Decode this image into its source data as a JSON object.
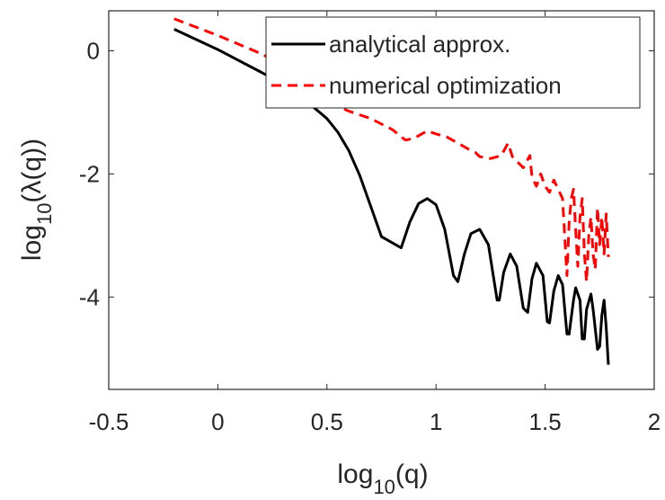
{
  "chart_data": {
    "type": "line",
    "xlabel": {
      "base": "log",
      "sub": "10",
      "rest": "(q)"
    },
    "ylabel": {
      "base": "log",
      "sub": "10",
      "rest": "(λ(q))"
    },
    "xlim": [
      -0.5,
      2
    ],
    "ylim": [
      -5.5,
      0.65
    ],
    "xticks": [
      -0.5,
      0,
      0.5,
      1,
      1.5,
      2
    ],
    "yticks": [
      -4,
      -2,
      0
    ],
    "legend_position": "top-right",
    "series": [
      {
        "name": "analytical approx.",
        "color": "#000000",
        "style": "solid",
        "points": [
          [
            -0.2,
            0.35
          ],
          [
            0.0,
            0.02
          ],
          [
            0.2,
            -0.35
          ],
          [
            0.3,
            -0.55
          ],
          [
            0.4,
            -0.8
          ],
          [
            0.5,
            -1.1
          ],
          [
            0.55,
            -1.32
          ],
          [
            0.6,
            -1.62
          ],
          [
            0.65,
            -2.02
          ],
          [
            0.7,
            -2.52
          ],
          [
            0.75,
            -3.02
          ],
          [
            0.84,
            -3.2
          ],
          [
            0.88,
            -2.78
          ],
          [
            0.92,
            -2.48
          ],
          [
            0.96,
            -2.4
          ],
          [
            1.0,
            -2.5
          ],
          [
            1.04,
            -2.9
          ],
          [
            1.08,
            -3.65
          ],
          [
            1.1,
            -3.75
          ],
          [
            1.13,
            -3.3
          ],
          [
            1.16,
            -2.97
          ],
          [
            1.2,
            -2.9
          ],
          [
            1.24,
            -3.15
          ],
          [
            1.28,
            -4.05
          ],
          [
            1.29,
            -4.05
          ],
          [
            1.31,
            -3.6
          ],
          [
            1.34,
            -3.3
          ],
          [
            1.37,
            -3.5
          ],
          [
            1.4,
            -4.18
          ],
          [
            1.42,
            -4.25
          ],
          [
            1.44,
            -3.7
          ],
          [
            1.46,
            -3.45
          ],
          [
            1.49,
            -3.65
          ],
          [
            1.51,
            -4.4
          ],
          [
            1.52,
            -4.42
          ],
          [
            1.54,
            -3.9
          ],
          [
            1.56,
            -3.65
          ],
          [
            1.58,
            -3.8
          ],
          [
            1.6,
            -4.6
          ],
          [
            1.61,
            -4.6
          ],
          [
            1.63,
            -4.05
          ],
          [
            1.64,
            -3.85
          ],
          [
            1.66,
            -4.05
          ],
          [
            1.67,
            -4.68
          ],
          [
            1.68,
            -4.68
          ],
          [
            1.69,
            -4.2
          ],
          [
            1.71,
            -3.95
          ],
          [
            1.72,
            -4.2
          ],
          [
            1.74,
            -4.85
          ],
          [
            1.75,
            -4.8
          ],
          [
            1.76,
            -4.3
          ],
          [
            1.77,
            -4.05
          ],
          [
            1.78,
            -4.5
          ],
          [
            1.79,
            -5.1
          ]
        ]
      },
      {
        "name": "numerical optimization",
        "color": "#ff0000",
        "style": "dashed",
        "points": [
          [
            -0.2,
            0.52
          ],
          [
            0.0,
            0.25
          ],
          [
            0.2,
            -0.05
          ],
          [
            0.3,
            -0.25
          ],
          [
            0.4,
            -0.55
          ],
          [
            0.5,
            -0.82
          ],
          [
            0.6,
            -0.98
          ],
          [
            0.7,
            -1.1
          ],
          [
            0.8,
            -1.28
          ],
          [
            0.86,
            -1.45
          ],
          [
            0.9,
            -1.42
          ],
          [
            0.96,
            -1.3
          ],
          [
            1.0,
            -1.35
          ],
          [
            1.05,
            -1.4
          ],
          [
            1.1,
            -1.5
          ],
          [
            1.15,
            -1.6
          ],
          [
            1.18,
            -1.65
          ],
          [
            1.2,
            -1.72
          ],
          [
            1.25,
            -1.75
          ],
          [
            1.3,
            -1.7
          ],
          [
            1.33,
            -1.5
          ],
          [
            1.35,
            -1.72
          ],
          [
            1.4,
            -1.9
          ],
          [
            1.43,
            -1.7
          ],
          [
            1.44,
            -2.05
          ],
          [
            1.46,
            -2.2
          ],
          [
            1.48,
            -2.0
          ],
          [
            1.5,
            -2.2
          ],
          [
            1.52,
            -2.3
          ],
          [
            1.54,
            -2.1
          ],
          [
            1.56,
            -2.25
          ],
          [
            1.58,
            -2.4
          ],
          [
            1.6,
            -3.65
          ],
          [
            1.61,
            -2.8
          ],
          [
            1.62,
            -2.4
          ],
          [
            1.63,
            -2.25
          ],
          [
            1.64,
            -2.9
          ],
          [
            1.65,
            -3.5
          ],
          [
            1.66,
            -2.7
          ],
          [
            1.67,
            -2.4
          ],
          [
            1.68,
            -3.3
          ],
          [
            1.69,
            -3.75
          ],
          [
            1.7,
            -3.0
          ],
          [
            1.71,
            -2.7
          ],
          [
            1.72,
            -3.3
          ],
          [
            1.73,
            -3.55
          ],
          [
            1.74,
            -2.55
          ],
          [
            1.75,
            -3.15
          ],
          [
            1.76,
            -2.7
          ],
          [
            1.77,
            -3.3
          ],
          [
            1.78,
            -2.65
          ],
          [
            1.79,
            -3.35
          ]
        ]
      }
    ]
  }
}
